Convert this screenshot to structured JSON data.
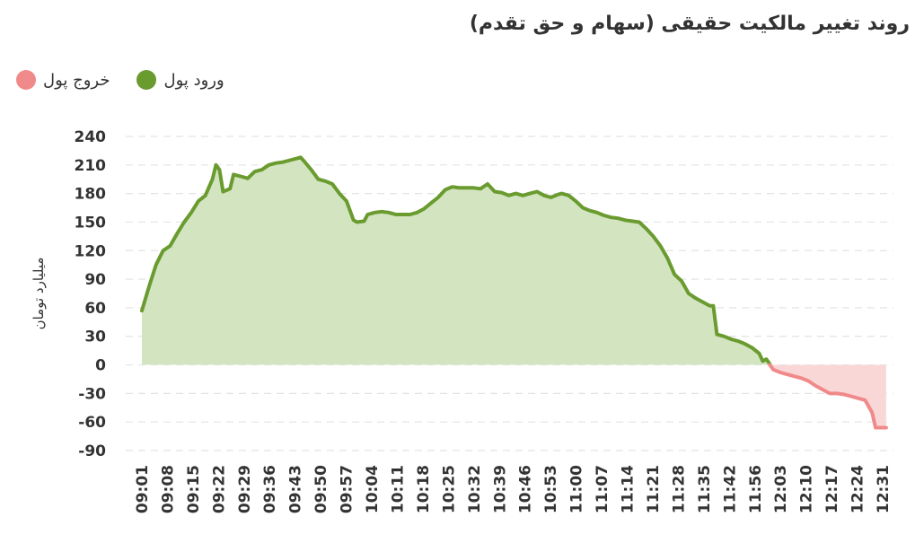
{
  "chart_data": {
    "type": "area",
    "title": "روند تغییر مالکیت حقیقی (سهام و حق تقدم)",
    "ylabel": "میلیارد تومان",
    "xlabel": "",
    "legend": [
      {
        "label": "ورود پول",
        "color": "#6a9b2f"
      },
      {
        "label": "خروج پول",
        "color": "#f08a8a"
      }
    ],
    "legend_placement": "top-left",
    "ylim": [
      -90,
      240
    ],
    "yticks": [
      "240",
      "210",
      "180",
      "150",
      "120",
      "90",
      "60",
      "30",
      "0",
      "-30",
      "-60",
      "-90"
    ],
    "xticks": [
      "09:01",
      "09:08",
      "09:15",
      "09:22",
      "09:29",
      "09:36",
      "09:43",
      "09:50",
      "09:57",
      "10:04",
      "10:11",
      "10:18",
      "10:25",
      "10:32",
      "10:39",
      "10:46",
      "10:53",
      "11:00",
      "11:07",
      "11:14",
      "11:21",
      "11:28",
      "11:35",
      "11:42",
      "11:56",
      "12:03",
      "12:10",
      "12:17",
      "12:24",
      "12:31"
    ],
    "grid": true,
    "series": [
      {
        "name": "ورود پول",
        "color": "#6a9b2f",
        "fill": "#d3e4c1",
        "points": [
          [
            "09:01",
            57
          ],
          [
            "09:03",
            82
          ],
          [
            "09:05",
            105
          ],
          [
            "09:07",
            120
          ],
          [
            "09:09",
            125
          ],
          [
            "09:11",
            138
          ],
          [
            "09:13",
            150
          ],
          [
            "09:15",
            160
          ],
          [
            "09:17",
            172
          ],
          [
            "09:19",
            178
          ],
          [
            "09:21",
            195
          ],
          [
            "09:22",
            210
          ],
          [
            "09:23",
            205
          ],
          [
            "09:24",
            182
          ],
          [
            "09:26",
            185
          ],
          [
            "09:27",
            200
          ],
          [
            "09:29",
            198
          ],
          [
            "09:31",
            196
          ],
          [
            "09:33",
            203
          ],
          [
            "09:35",
            205
          ],
          [
            "09:37",
            210
          ],
          [
            "09:39",
            212
          ],
          [
            "09:41",
            213
          ],
          [
            "09:43",
            215
          ],
          [
            "09:45",
            217
          ],
          [
            "09:46",
            218
          ],
          [
            "09:47",
            214
          ],
          [
            "09:49",
            205
          ],
          [
            "09:51",
            195
          ],
          [
            "09:53",
            193
          ],
          [
            "09:55",
            190
          ],
          [
            "09:57",
            180
          ],
          [
            "09:59",
            172
          ],
          [
            "10:01",
            152
          ],
          [
            "10:02",
            150
          ],
          [
            "10:04",
            151
          ],
          [
            "10:05",
            158
          ],
          [
            "10:07",
            160
          ],
          [
            "10:09",
            161
          ],
          [
            "10:11",
            160
          ],
          [
            "10:13",
            158
          ],
          [
            "10:15",
            158
          ],
          [
            "10:17",
            158
          ],
          [
            "10:19",
            160
          ],
          [
            "10:21",
            164
          ],
          [
            "10:23",
            170
          ],
          [
            "10:25",
            176
          ],
          [
            "10:27",
            184
          ],
          [
            "10:29",
            187
          ],
          [
            "10:31",
            186
          ],
          [
            "10:33",
            186
          ],
          [
            "10:35",
            186
          ],
          [
            "10:37",
            185
          ],
          [
            "10:39",
            190
          ],
          [
            "10:41",
            182
          ],
          [
            "10:43",
            181
          ],
          [
            "10:45",
            178
          ],
          [
            "10:47",
            180
          ],
          [
            "10:49",
            178
          ],
          [
            "10:51",
            180
          ],
          [
            "10:53",
            182
          ],
          [
            "10:55",
            178
          ],
          [
            "10:57",
            176
          ],
          [
            "10:59",
            179
          ],
          [
            "11:00",
            180
          ],
          [
            "11:02",
            178
          ],
          [
            "11:04",
            172
          ],
          [
            "11:06",
            165
          ],
          [
            "11:08",
            162
          ],
          [
            "11:10",
            160
          ],
          [
            "11:12",
            157
          ],
          [
            "11:14",
            155
          ],
          [
            "11:16",
            154
          ],
          [
            "11:18",
            152
          ],
          [
            "11:20",
            151
          ],
          [
            "11:22",
            150
          ],
          [
            "11:24",
            143
          ],
          [
            "11:26",
            135
          ],
          [
            "11:28",
            125
          ],
          [
            "11:30",
            112
          ],
          [
            "11:32",
            95
          ],
          [
            "11:34",
            88
          ],
          [
            "11:36",
            75
          ],
          [
            "11:38",
            70
          ],
          [
            "11:40",
            66
          ],
          [
            "11:42",
            62
          ],
          [
            "11:43",
            62
          ],
          [
            "11:44",
            32
          ],
          [
            "11:46",
            30
          ],
          [
            "11:48",
            27
          ],
          [
            "11:50",
            25
          ],
          [
            "11:52",
            22
          ],
          [
            "11:54",
            18
          ],
          [
            "11:56",
            12
          ],
          [
            "11:57",
            4
          ],
          [
            "11:58",
            6
          ],
          [
            "11:59",
            1
          ]
        ]
      },
      {
        "name": "خروج پول",
        "color": "#f08a8a",
        "fill": "#fad7d7",
        "points": [
          [
            "11:59",
            0
          ],
          [
            "12:00",
            -5
          ],
          [
            "12:02",
            -8
          ],
          [
            "12:04",
            -10
          ],
          [
            "12:06",
            -12
          ],
          [
            "12:08",
            -14
          ],
          [
            "12:10",
            -17
          ],
          [
            "12:12",
            -22
          ],
          [
            "12:14",
            -26
          ],
          [
            "12:16",
            -30
          ],
          [
            "12:18",
            -30
          ],
          [
            "12:20",
            -31
          ],
          [
            "12:22",
            -33
          ],
          [
            "12:24",
            -35
          ],
          [
            "12:26",
            -37
          ],
          [
            "12:28",
            -50
          ],
          [
            "12:29",
            -66
          ],
          [
            "12:32",
            -66
          ]
        ]
      }
    ]
  }
}
